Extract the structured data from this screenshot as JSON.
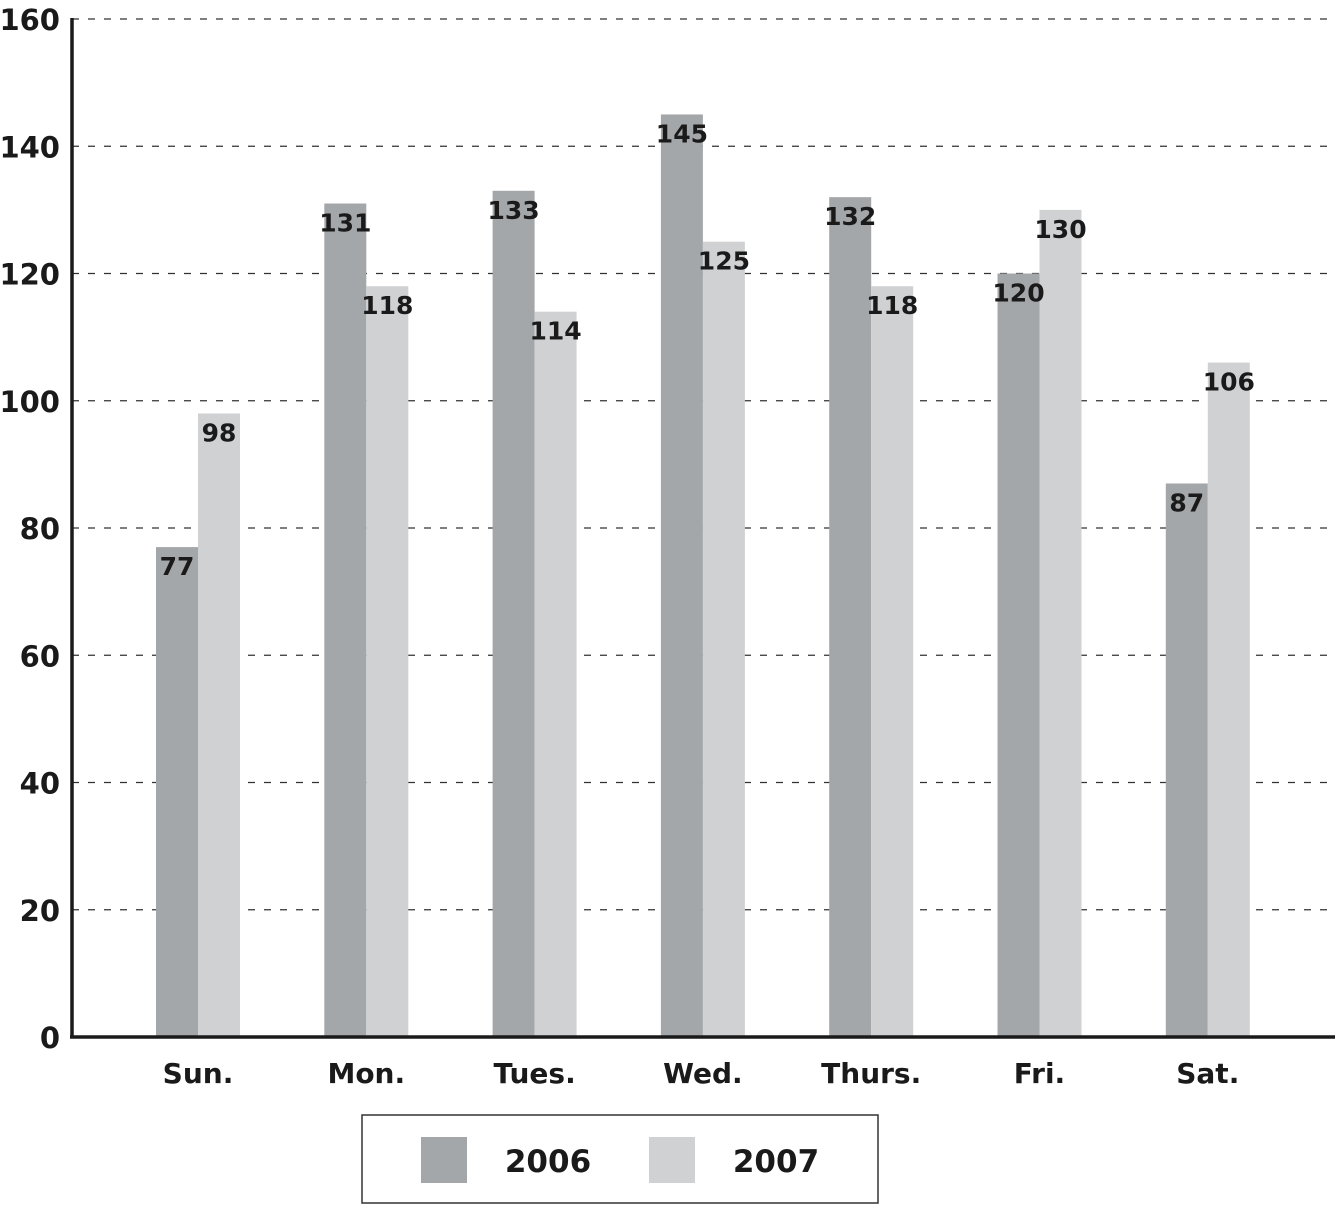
{
  "chart_data": {
    "type": "bar",
    "categories": [
      "Sun.",
      "Mon.",
      "Tues.",
      "Wed.",
      "Thurs.",
      "Fri.",
      "Sat."
    ],
    "series": [
      {
        "name": "2006",
        "values": [
          77,
          131,
          133,
          145,
          132,
          120,
          87
        ],
        "color": "#a4a7aa"
      },
      {
        "name": "2007",
        "values": [
          98,
          118,
          114,
          125,
          118,
          130,
          106
        ],
        "color": "#d0d1d3"
      }
    ],
    "ylim": [
      0,
      160
    ],
    "yticks": [
      0,
      20,
      40,
      60,
      80,
      100,
      120,
      140,
      160
    ],
    "grid": true,
    "data_labels": true,
    "legend_position": "bottom-center"
  }
}
